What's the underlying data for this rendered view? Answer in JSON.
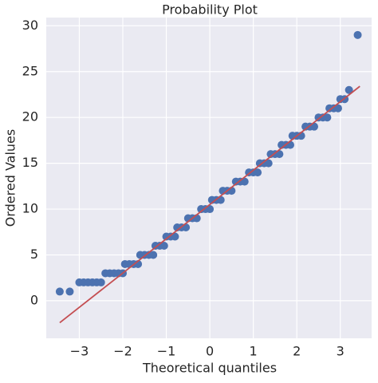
{
  "chart_data": {
    "type": "scatter",
    "title": "Probability Plot",
    "x_label": "Theoretical quantiles",
    "y_label": "Ordered Values",
    "xlim": [
      -3.76,
      3.72
    ],
    "ylim": [
      -4.1,
      30.9
    ],
    "xticks": [
      {
        "value": -3,
        "label": "−3"
      },
      {
        "value": -2,
        "label": "−2"
      },
      {
        "value": -1,
        "label": "−1"
      },
      0,
      1,
      2,
      3
    ],
    "yticks": [
      0,
      5,
      10,
      15,
      20,
      25,
      30
    ],
    "grid": true,
    "series": [
      {
        "color": "#4c72b0",
        "x": [
          -3.45,
          -3.22,
          -3.0,
          -2.9,
          -2.8,
          -2.7,
          -2.6,
          -2.5,
          -2.4,
          -2.3,
          -2.2,
          -2.1,
          -2.0,
          -1.95,
          -1.85,
          -1.75,
          -1.65,
          -1.6,
          -1.5,
          -1.4,
          -1.3,
          -1.25,
          -1.15,
          -1.05,
          -1.0,
          -0.9,
          -0.8,
          -0.75,
          -0.65,
          -0.55,
          -0.5,
          -0.4,
          -0.3,
          -0.2,
          -0.1,
          0.0,
          0.05,
          0.15,
          0.25,
          0.3,
          0.4,
          0.5,
          0.6,
          0.7,
          0.8,
          0.9,
          1.0,
          1.1,
          1.15,
          1.25,
          1.35,
          1.4,
          1.5,
          1.6,
          1.65,
          1.75,
          1.85,
          1.9,
          2.0,
          2.1,
          2.2,
          2.3,
          2.4,
          2.5,
          2.6,
          2.7,
          2.75,
          2.85,
          2.95,
          3.0,
          3.1,
          3.2,
          3.4
        ],
        "values": [
          1,
          1,
          2,
          2,
          2,
          2,
          2,
          2,
          3,
          3,
          3,
          3,
          3,
          4,
          4,
          4,
          4,
          5,
          5,
          5,
          5,
          6,
          6,
          6,
          7,
          7,
          7,
          8,
          8,
          8,
          9,
          9,
          9,
          10,
          10,
          10,
          11,
          11,
          11,
          12,
          12,
          12,
          13,
          13,
          13,
          14,
          14,
          14,
          15,
          15,
          15,
          16,
          16,
          16,
          17,
          17,
          17,
          18,
          18,
          18,
          19,
          19,
          19,
          20,
          20,
          20,
          21,
          21,
          21,
          22,
          22,
          23,
          29
        ]
      }
    ],
    "fit_line": {
      "color": "#c44e52",
      "x": [
        -3.45,
        3.45
      ],
      "values": [
        -2.4,
        23.4
      ]
    }
  }
}
